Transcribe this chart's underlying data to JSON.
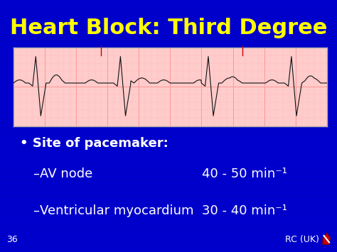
{
  "title": "Heart Block: Third Degree",
  "title_color": "#FFFF00",
  "title_fontsize": 22,
  "bg_color": "#0000CC",
  "slide_number": "36",
  "rc_label": "RC (UK)",
  "bullet_text": "Site of pacemaker:",
  "bullet_color": "#FFFFFF",
  "line1_label": "–AV node",
  "line1_value": "40 - 50 min⁻¹",
  "line2_label": "–Ventricular myocardium",
  "line2_value": "30 - 40 min⁻¹",
  "text_fontsize": 13,
  "ecg_bg": "#FFCCCC",
  "ecg_line_color": "#111111",
  "grid_major_color": "#FF9999",
  "grid_minor_color": "#FFBBBB"
}
